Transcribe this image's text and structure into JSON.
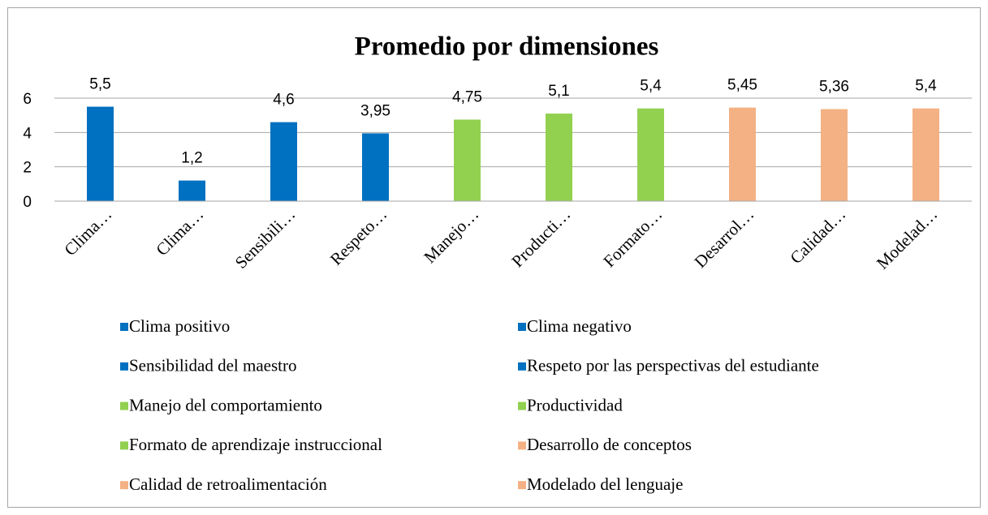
{
  "chart_data": {
    "type": "bar",
    "title": "Promedio por dimensiones",
    "categories": [
      "Clima…",
      "Clima…",
      "Sensibili…",
      "Respeto…",
      "Manejo…",
      "Producti…",
      "Formato…",
      "Desarrol…",
      "Calidad…",
      "Modelad…"
    ],
    "values": [
      5.5,
      1.2,
      4.6,
      3.95,
      4.75,
      5.1,
      5.4,
      5.45,
      5.36,
      5.4
    ],
    "value_labels": [
      "5,5",
      "1,2",
      "4,6",
      "3,95",
      "4,75",
      "5,1",
      "5,4",
      "5,45",
      "5,36",
      "5,4"
    ],
    "colors": [
      "#0070c0",
      "#0070c0",
      "#0070c0",
      "#0070c0",
      "#92d050",
      "#92d050",
      "#92d050",
      "#f4b183",
      "#f4b183",
      "#f4b183"
    ],
    "legend_labels": [
      "Clima positivo",
      "Clima negativo",
      "Sensibilidad del maestro",
      "Respeto por las perspectivas del estudiante",
      "Manejo del comportamiento",
      "Productividad",
      "Formato de aprendizaje instruccional",
      "Desarrollo de conceptos",
      "Calidad de retroalimentación",
      "Modelado del lenguaje"
    ],
    "ylim": [
      0,
      6
    ],
    "yticks": [
      0,
      2,
      4,
      6
    ],
    "grid": true
  }
}
